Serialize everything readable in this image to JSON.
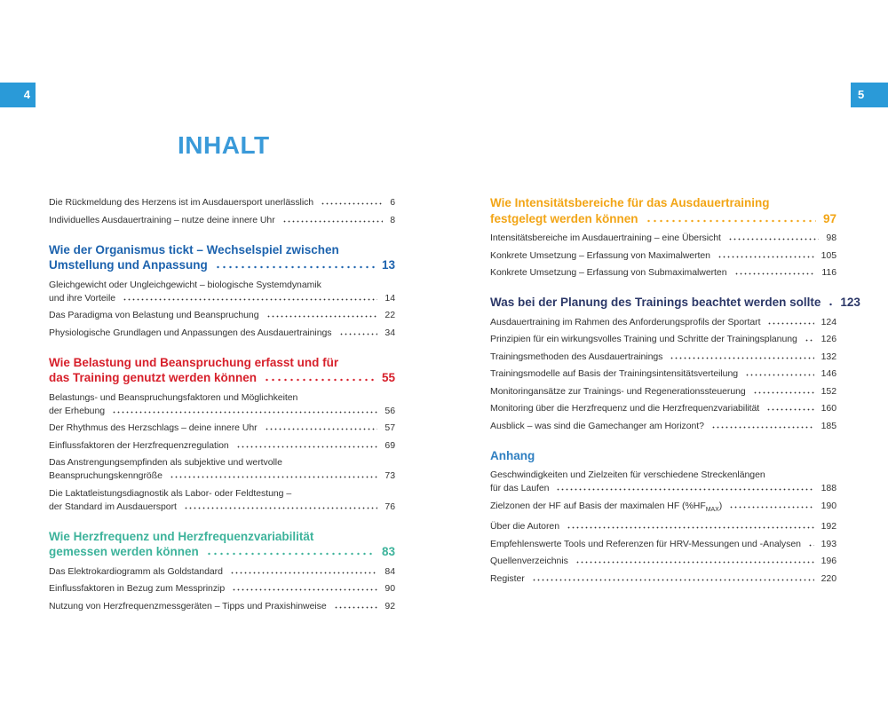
{
  "page_left": 4,
  "page_right": 5,
  "title": "INHALT",
  "columns": [
    {
      "sections": [
        {
          "entries": [
            {
              "lines": [
                "Die Rückmeldung des Herzens ist im Ausdauersport unerlässlich"
              ],
              "page": 6
            },
            {
              "lines": [
                "Individuelles Ausdauertraining – nutze deine innere Uhr"
              ],
              "page": 8
            }
          ]
        },
        {
          "heading": {
            "lines": [
              "Wie der Organismus tickt – Wechselspiel zwischen",
              "Umstellung und Anpassung"
            ],
            "page": 13
          },
          "color": "#1d63ae",
          "entries": [
            {
              "lines": [
                "Gleichgewicht oder Ungleichgewicht – biologische Systemdynamik",
                "und ihre Vorteile"
              ],
              "page": 14
            },
            {
              "lines": [
                "Das Paradigma von Belastung und Beanspruchung"
              ],
              "page": 22
            },
            {
              "lines": [
                "Physiologische Grundlagen und Anpassungen des Ausdauertrainings"
              ],
              "page": 34
            }
          ]
        },
        {
          "heading": {
            "lines": [
              "Wie Belastung und Beanspruchung erfasst und für",
              "das Training genutzt werden können"
            ],
            "page": 55
          },
          "color": "#d7202b",
          "entries": [
            {
              "lines": [
                "Belastungs- und Beanspruchungsfaktoren und Möglichkeiten",
                "der Erhebung"
              ],
              "page": 56
            },
            {
              "lines": [
                "Der Rhythmus des Herzschlags – deine innere Uhr"
              ],
              "page": 57
            },
            {
              "lines": [
                "Einflussfaktoren der Herzfrequenzregulation"
              ],
              "page": 69
            },
            {
              "lines": [
                "Das Anstrengungsempfinden als subjektive und wertvolle",
                "Beanspruchungskenngröße"
              ],
              "page": 73
            },
            {
              "lines": [
                "Die Laktatleistungsdiagnostik als Labor- oder Feldtestung –",
                "der Standard im Ausdauersport"
              ],
              "page": 76
            }
          ]
        },
        {
          "heading": {
            "lines": [
              "Wie Herzfrequenz und Herzfrequenzvariabilität",
              "gemessen werden können"
            ],
            "page": 83
          },
          "color": "#3db39b",
          "entries": [
            {
              "lines": [
                "Das Elektrokardiogramm als Goldstandard"
              ],
              "page": 84
            },
            {
              "lines": [
                "Einflussfaktoren in Bezug zum Messprinzip"
              ],
              "page": 90
            },
            {
              "lines": [
                "Nutzung von Herzfrequenzmessgeräten – Tipps und Praxishinweise"
              ],
              "page": 92
            }
          ]
        }
      ]
    },
    {
      "sections": [
        {
          "heading": {
            "lines": [
              "Wie Intensitätsbereiche für das Ausdauertraining",
              "festgelegt werden können"
            ],
            "page": 97
          },
          "color": "#f2a516",
          "entries": [
            {
              "lines": [
                "Intensitätsbereiche im Ausdauertraining – eine Übersicht"
              ],
              "page": 98
            },
            {
              "lines": [
                "Konkrete Umsetzung – Erfassung von Maximalwerten"
              ],
              "page": 105
            },
            {
              "lines": [
                "Konkrete Umsetzung – Erfassung von Submaximalwerten"
              ],
              "page": 116
            }
          ]
        },
        {
          "heading": {
            "lines": [
              "Was bei der Planung des Trainings beachtet werden sollte"
            ],
            "page": 123
          },
          "color": "#2c3868",
          "entries": [
            {
              "lines": [
                "Ausdauertraining im Rahmen des Anforderungsprofils der Sportart"
              ],
              "page": 124
            },
            {
              "lines": [
                "Prinzipien für ein wirkungsvolles Training und Schritte der Trainingsplanung"
              ],
              "page": 126
            },
            {
              "lines": [
                "Trainingsmethoden des Ausdauertrainings"
              ],
              "page": 132
            },
            {
              "lines": [
                "Trainingsmodelle auf Basis der Trainingsintensitätsverteilung"
              ],
              "page": 146
            },
            {
              "lines": [
                "Monitoringansätze zur Trainings- und Regenerationssteuerung"
              ],
              "page": 152
            },
            {
              "lines": [
                "Monitoring über die Herzfrequenz und die Herzfrequenzvariabilität"
              ],
              "page": 160
            },
            {
              "lines": [
                "Ausblick – was sind die Gamechanger am Horizont?"
              ],
              "page": 185
            }
          ]
        },
        {
          "heading": {
            "lines": [
              "Anhang"
            ]
          },
          "color": "#2f7fc1",
          "entries": [
            {
              "lines": [
                "Geschwindigkeiten und Zielzeiten für verschiedene Streckenlängen",
                "für das Laufen"
              ],
              "page": 188
            },
            {
              "lines": [
                "Zielzonen der HF auf Basis der maximalen HF (%HF"
              ],
              "subscript": "MAX",
              "suffix": ")",
              "page": 190
            },
            {
              "lines": [
                "Über die Autoren"
              ],
              "page": 192
            },
            {
              "lines": [
                "Empfehlenswerte Tools und Referenzen für HRV-Messungen und -Analysen"
              ],
              "page": 193
            },
            {
              "lines": [
                "Quellenverzeichnis"
              ],
              "page": 196
            },
            {
              "lines": [
                "Register"
              ],
              "page": 220
            }
          ]
        }
      ]
    }
  ]
}
